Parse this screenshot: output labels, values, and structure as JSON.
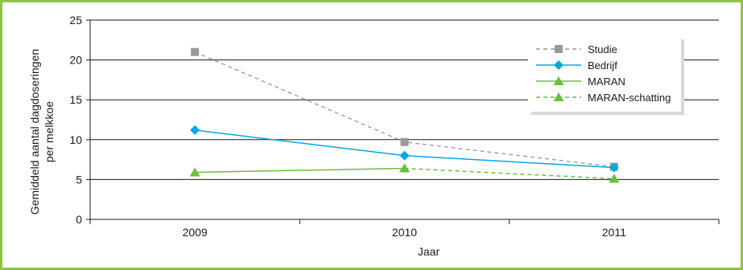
{
  "chart_data": {
    "type": "line",
    "title": "",
    "xlabel": "Jaar",
    "ylabel_lines": [
      "Gemiddeld aantal dagdoseringen",
      "per melkkoe"
    ],
    "categories": [
      "2009",
      "2010",
      "2011"
    ],
    "ylim": [
      0,
      25
    ],
    "yticks": [
      0,
      5,
      10,
      15,
      20,
      25
    ],
    "grid": true,
    "legend_position": "top-right",
    "series": [
      {
        "name": "Studie",
        "values": [
          21.0,
          9.7,
          6.6
        ],
        "color": "#999999",
        "marker": "square",
        "dashed": true,
        "dashed_from": 0
      },
      {
        "name": "Bedrijf",
        "values": [
          11.2,
          8.0,
          6.5
        ],
        "color": "#00a9e6",
        "marker": "diamond",
        "dashed": false,
        "dashed_from": null
      },
      {
        "name": "MARAN",
        "values": [
          5.9,
          6.4,
          null
        ],
        "color": "#6bbf3f",
        "marker": "triangle",
        "dashed": false,
        "dashed_from": null
      },
      {
        "name": "MARAN-schatting",
        "values": [
          null,
          6.4,
          5.1
        ],
        "color": "#6bbf3f",
        "marker": "triangle",
        "dashed": true,
        "dashed_from": 0
      }
    ]
  }
}
